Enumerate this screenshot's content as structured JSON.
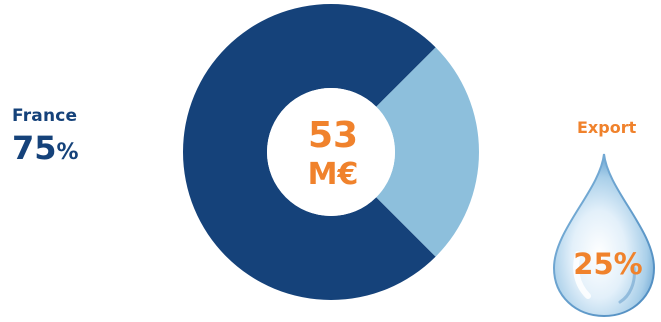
{
  "chart_data": {
    "type": "pie",
    "center_value": "53",
    "center_unit": "M€",
    "slices": [
      {
        "label": "France",
        "value": 75,
        "display": "75",
        "unit": "%",
        "color": "#15427a"
      },
      {
        "label": "Export",
        "value": 25,
        "display": "25%",
        "color": "#8dbfdc"
      }
    ]
  },
  "colors": {
    "accent": "#f0822c",
    "dark": "#15427a",
    "light": "#8dbfdc"
  },
  "icons": {
    "export_icon": "water-drop-icon"
  }
}
